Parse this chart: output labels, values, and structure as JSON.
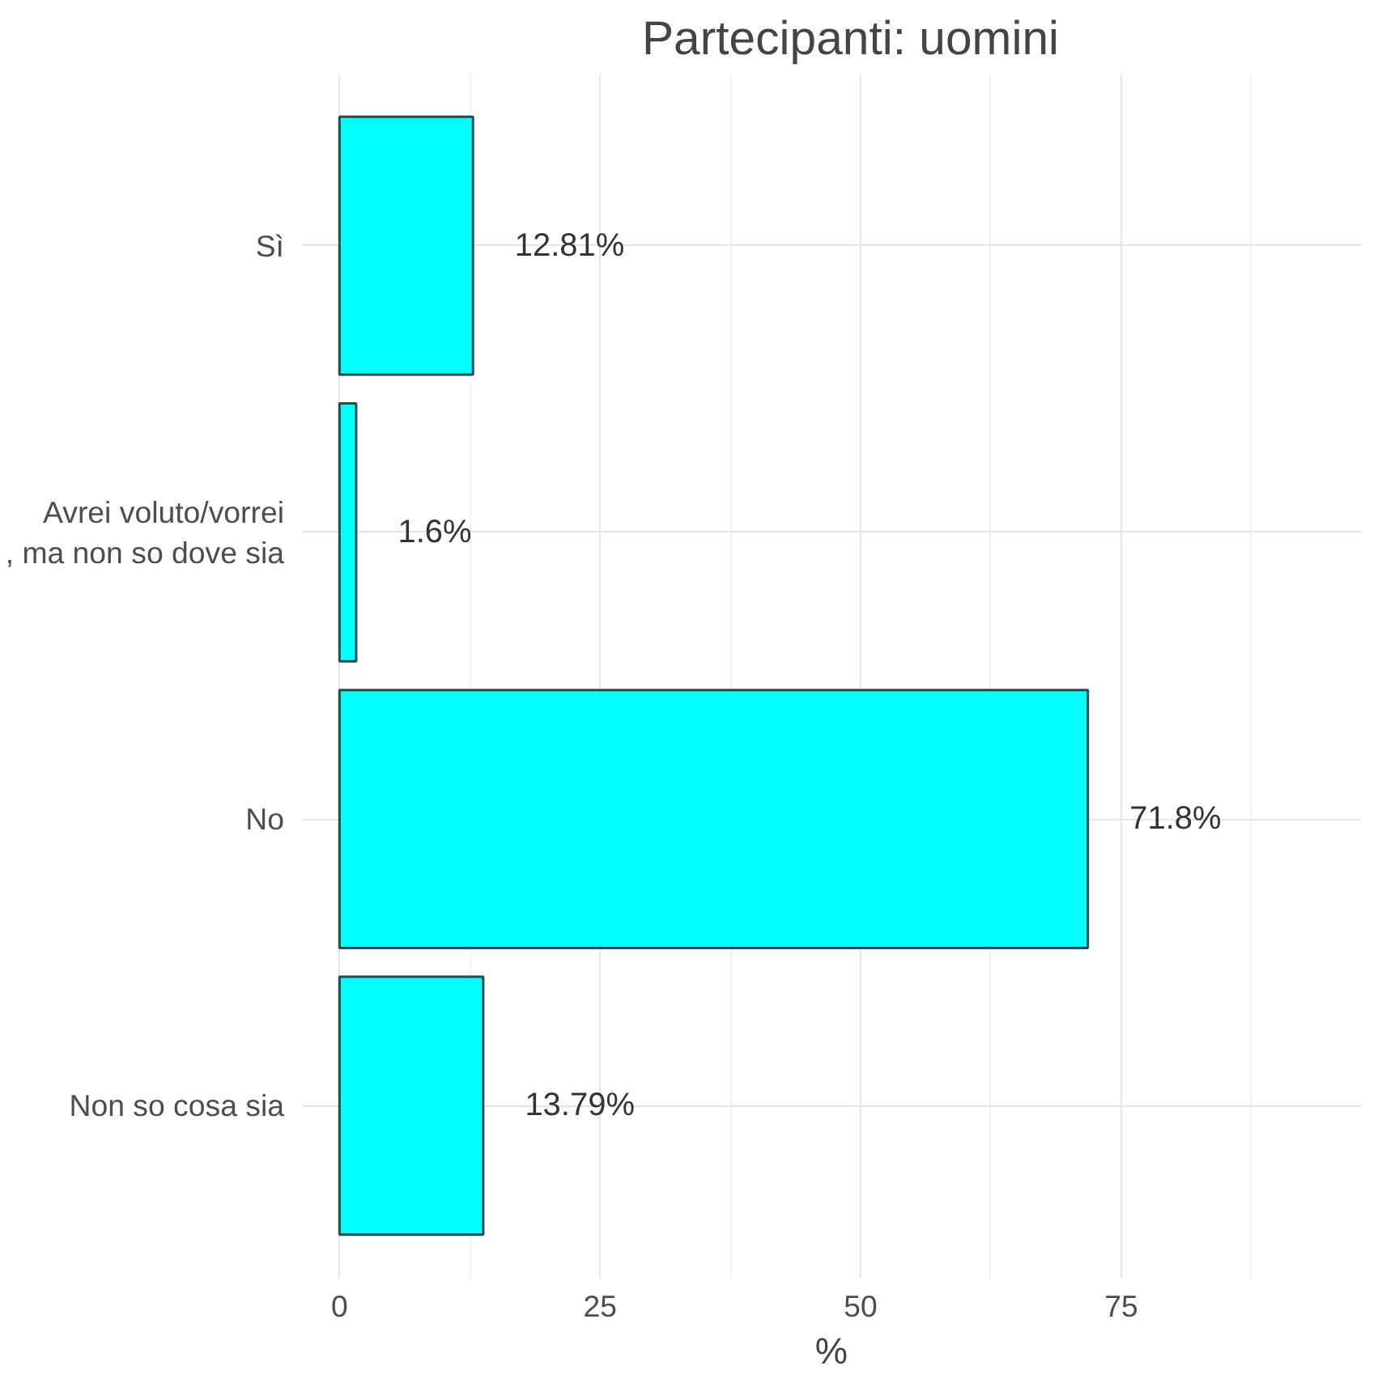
{
  "chart_data": {
    "type": "bar",
    "orientation": "horizontal",
    "title": "Partecipanti: uomini",
    "xlabel": "%",
    "categories": [
      "Sì",
      "Avrei voluto/vorrei\n, ma non so dove sia",
      "No",
      "Non so cosa sia"
    ],
    "values": [
      12.81,
      1.6,
      71.8,
      13.79
    ],
    "value_labels": [
      "12.81%",
      "1.6%",
      "71.8%",
      "13.79%"
    ],
    "color": "#00ffff",
    "xlim": [
      -3.6,
      98
    ],
    "xticks": [
      0,
      25,
      50,
      75
    ],
    "grid": true
  }
}
